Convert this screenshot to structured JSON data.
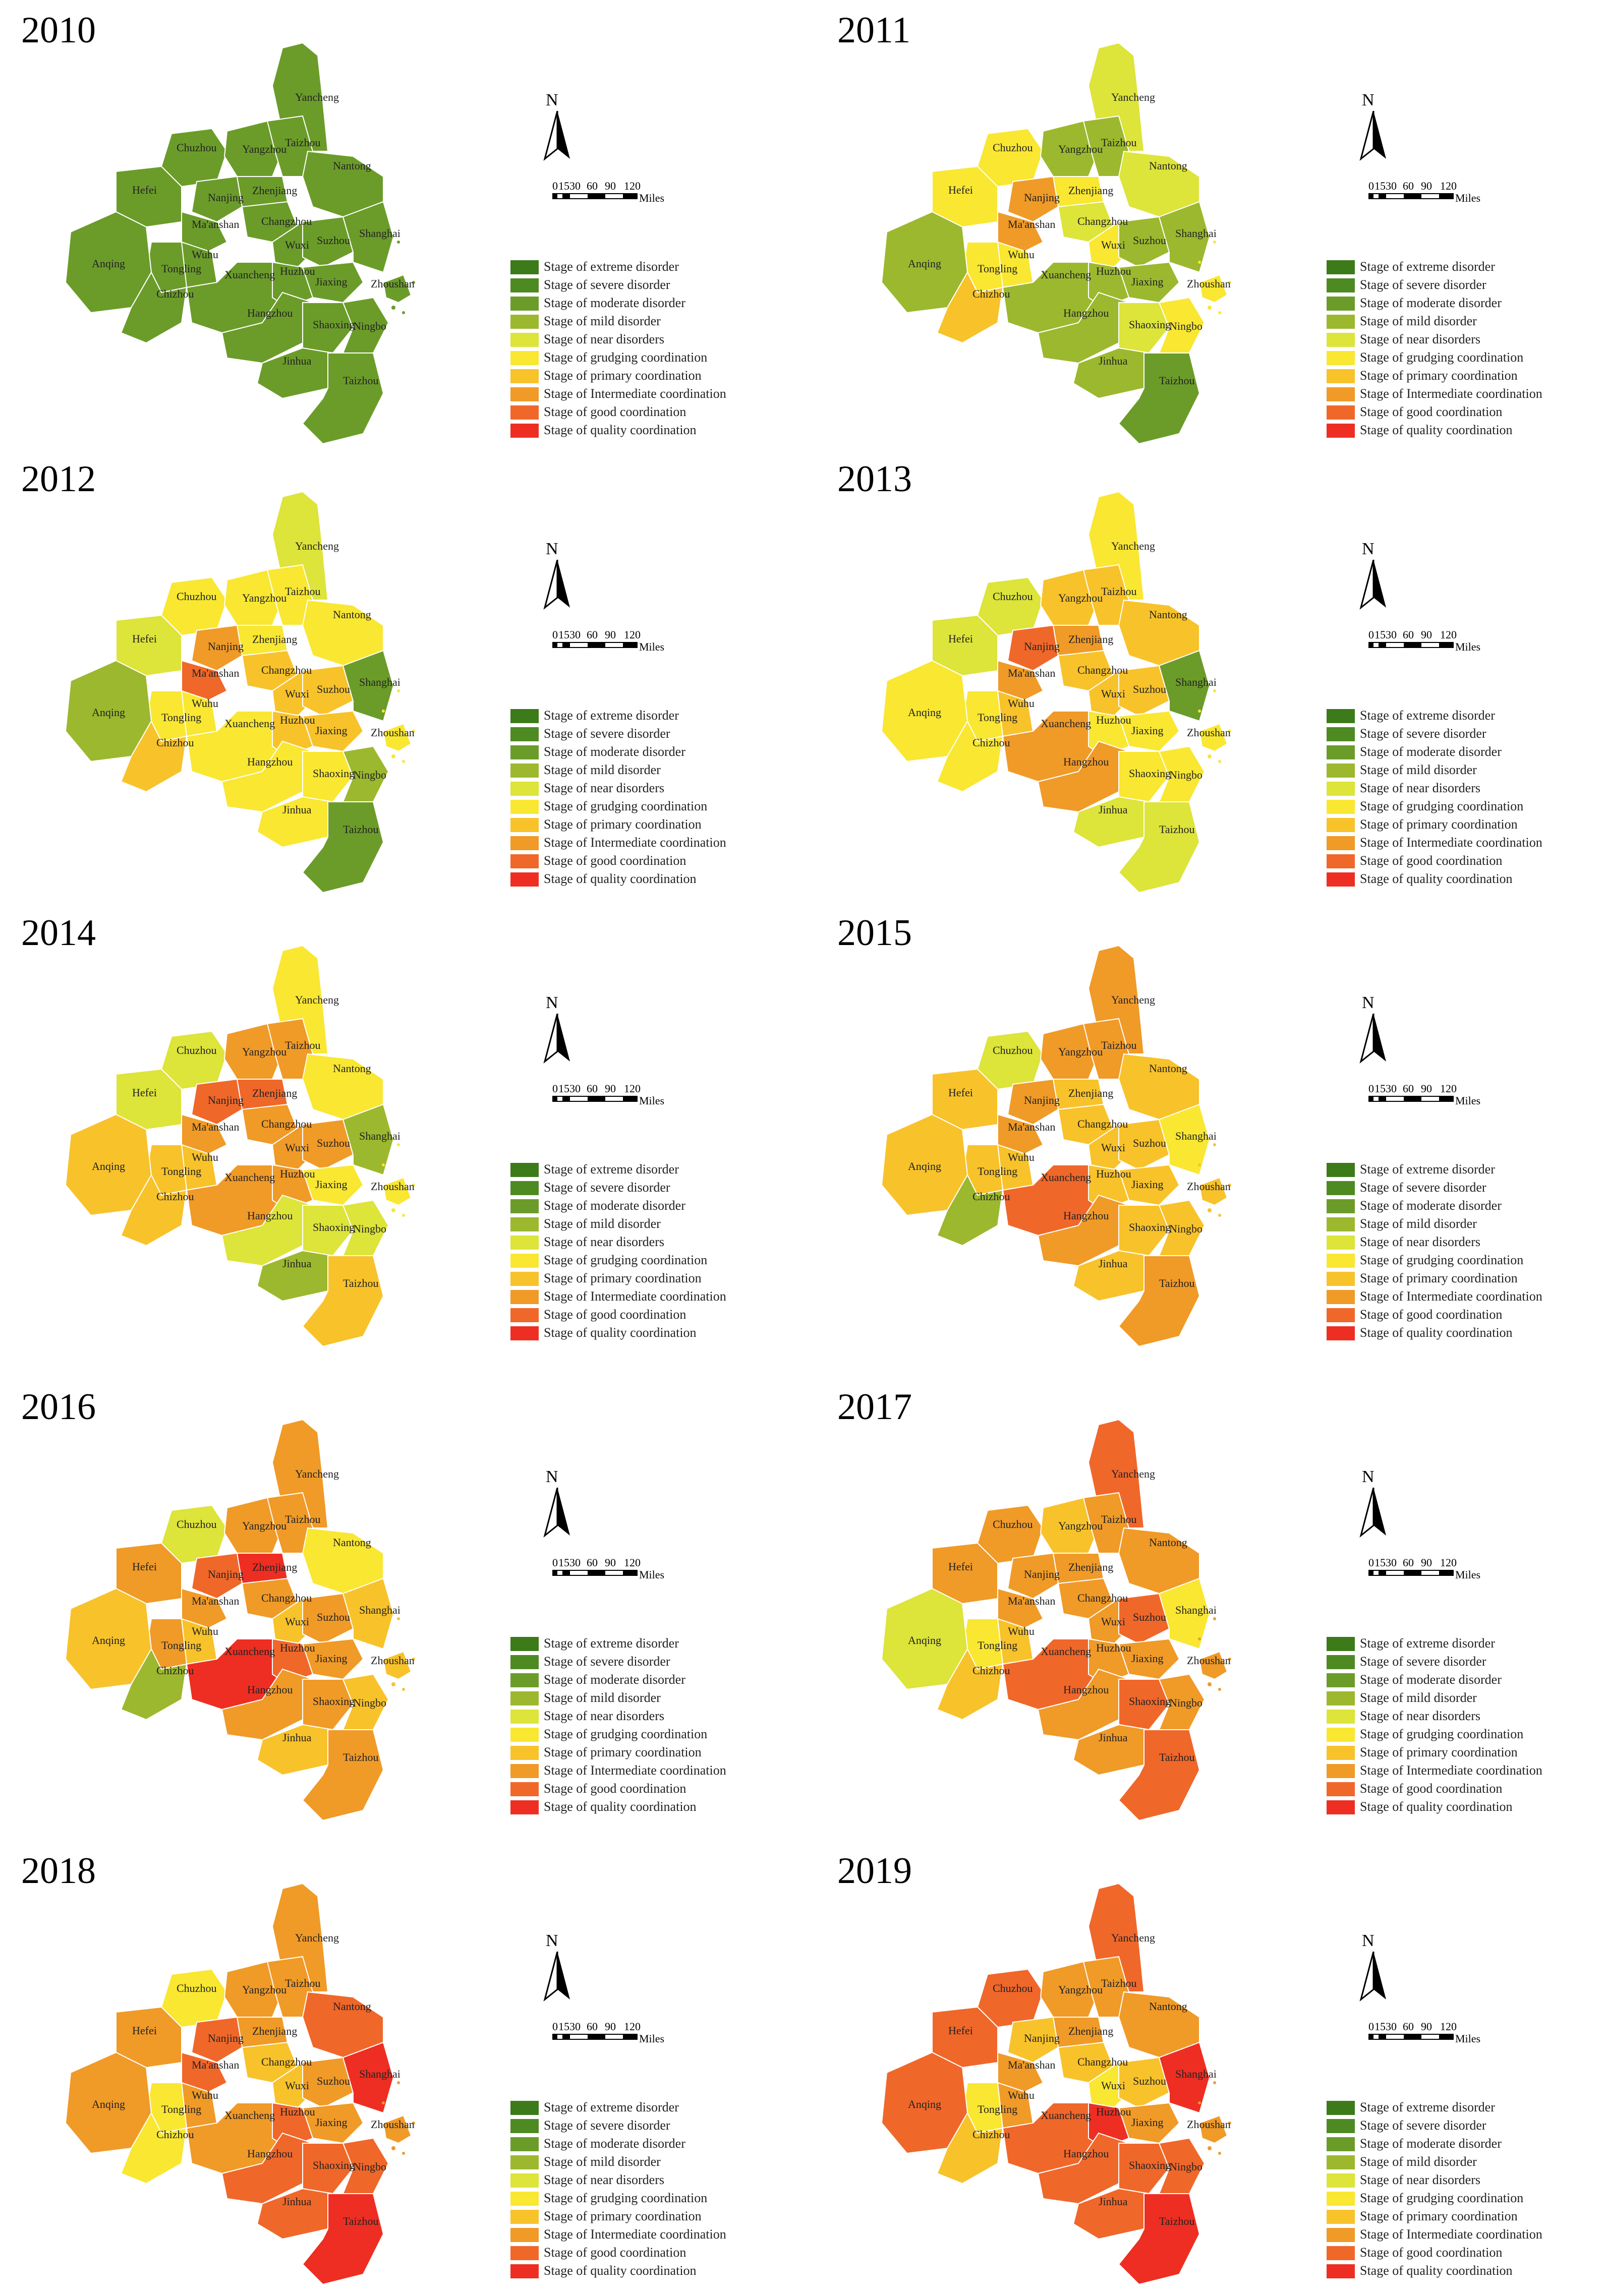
{
  "legend": [
    {
      "label": "Stage of extreme disorder",
      "color": "#3d7a1a"
    },
    {
      "label": "Stage of severe disorder",
      "color": "#4e8a22"
    },
    {
      "label": "Stage of moderate disorder",
      "color": "#6b9c2a"
    },
    {
      "label": "Stage of mild disorder",
      "color": "#9cb82e"
    },
    {
      "label": "Stage of near disorders",
      "color": "#dde43a"
    },
    {
      "label": "Stage of grudging coordination",
      "color": "#f9e732"
    },
    {
      "label": "Stage of primary coordination",
      "color": "#f8c22a"
    },
    {
      "label": "Stage of Intermediate coordination",
      "color": "#f09a28"
    },
    {
      "label": "Stage of good coordination",
      "color": "#f0672a"
    },
    {
      "label": "Stage of quality coordination",
      "color": "#ee2e22"
    }
  ],
  "north_label": "N",
  "scale": {
    "ticks": [
      "0",
      "15",
      "30",
      "60",
      "90",
      "120"
    ],
    "units": "Miles"
  },
  "cities": [
    "Yancheng",
    "Chuzhou",
    "Yangzhou",
    "Taizhou",
    "Nantong",
    "Hefei",
    "Nanjing",
    "Zhenjiang",
    "Ma'anshan",
    "Changzhou",
    "Wuhu",
    "Wuxi",
    "Suzhou",
    "Shanghai",
    "Tongling",
    "Anqing",
    "Chizhou",
    "Xuancheng",
    "Huzhou",
    "Jiaxing",
    "Zhoushan",
    "Hangzhou",
    "Shaoxing",
    "Ningbo",
    "Jinhua",
    "Taizhou"
  ],
  "years": [
    {
      "year": "2010",
      "stages": [
        2,
        2,
        2,
        2,
        2,
        2,
        2,
        2,
        2,
        2,
        2,
        2,
        2,
        2,
        2,
        2,
        2,
        2,
        2,
        2,
        2,
        2,
        2,
        2,
        2,
        2
      ]
    },
    {
      "year": "2011",
      "stages": [
        4,
        5,
        3,
        3,
        4,
        5,
        7,
        5,
        7,
        4,
        5,
        5,
        3,
        3,
        5,
        3,
        6,
        3,
        3,
        3,
        5,
        3,
        4,
        5,
        3,
        2
      ]
    },
    {
      "year": "2012",
      "stages": [
        4,
        5,
        5,
        5,
        5,
        4,
        7,
        5,
        8,
        6,
        5,
        6,
        6,
        2,
        5,
        3,
        6,
        5,
        6,
        6,
        5,
        5,
        5,
        3,
        5,
        2
      ]
    },
    {
      "year": "2013",
      "stages": [
        5,
        4,
        6,
        6,
        6,
        4,
        8,
        7,
        7,
        6,
        6,
        6,
        6,
        2,
        5,
        5,
        5,
        7,
        5,
        5,
        5,
        7,
        5,
        5,
        4,
        4
      ]
    },
    {
      "year": "2014",
      "stages": [
        5,
        4,
        7,
        7,
        5,
        4,
        8,
        8,
        7,
        7,
        6,
        7,
        7,
        3,
        6,
        6,
        6,
        7,
        7,
        5,
        5,
        4,
        4,
        4,
        3,
        6
      ]
    },
    {
      "year": "2015",
      "stages": [
        7,
        4,
        7,
        7,
        6,
        6,
        7,
        6,
        7,
        6,
        6,
        6,
        6,
        5,
        6,
        6,
        3,
        8,
        6,
        6,
        6,
        7,
        6,
        6,
        6,
        7
      ]
    },
    {
      "year": "2016",
      "stages": [
        7,
        4,
        7,
        7,
        5,
        7,
        8,
        9,
        7,
        7,
        6,
        6,
        7,
        6,
        7,
        6,
        3,
        9,
        8,
        7,
        6,
        7,
        7,
        6,
        6,
        7
      ]
    },
    {
      "year": "2017",
      "stages": [
        8,
        7,
        6,
        7,
        7,
        7,
        7,
        7,
        7,
        7,
        6,
        7,
        8,
        5,
        5,
        4,
        6,
        8,
        7,
        7,
        7,
        7,
        8,
        7,
        7,
        8
      ]
    },
    {
      "year": "2018",
      "stages": [
        7,
        5,
        7,
        7,
        8,
        7,
        8,
        7,
        8,
        6,
        7,
        6,
        7,
        9,
        5,
        7,
        5,
        7,
        8,
        7,
        7,
        8,
        8,
        8,
        8,
        9
      ]
    },
    {
      "year": "2019",
      "stages": [
        8,
        8,
        7,
        7,
        7,
        8,
        6,
        7,
        7,
        6,
        7,
        5,
        6,
        9,
        5,
        8,
        6,
        8,
        9,
        7,
        7,
        8,
        8,
        8,
        8,
        9
      ]
    }
  ]
}
